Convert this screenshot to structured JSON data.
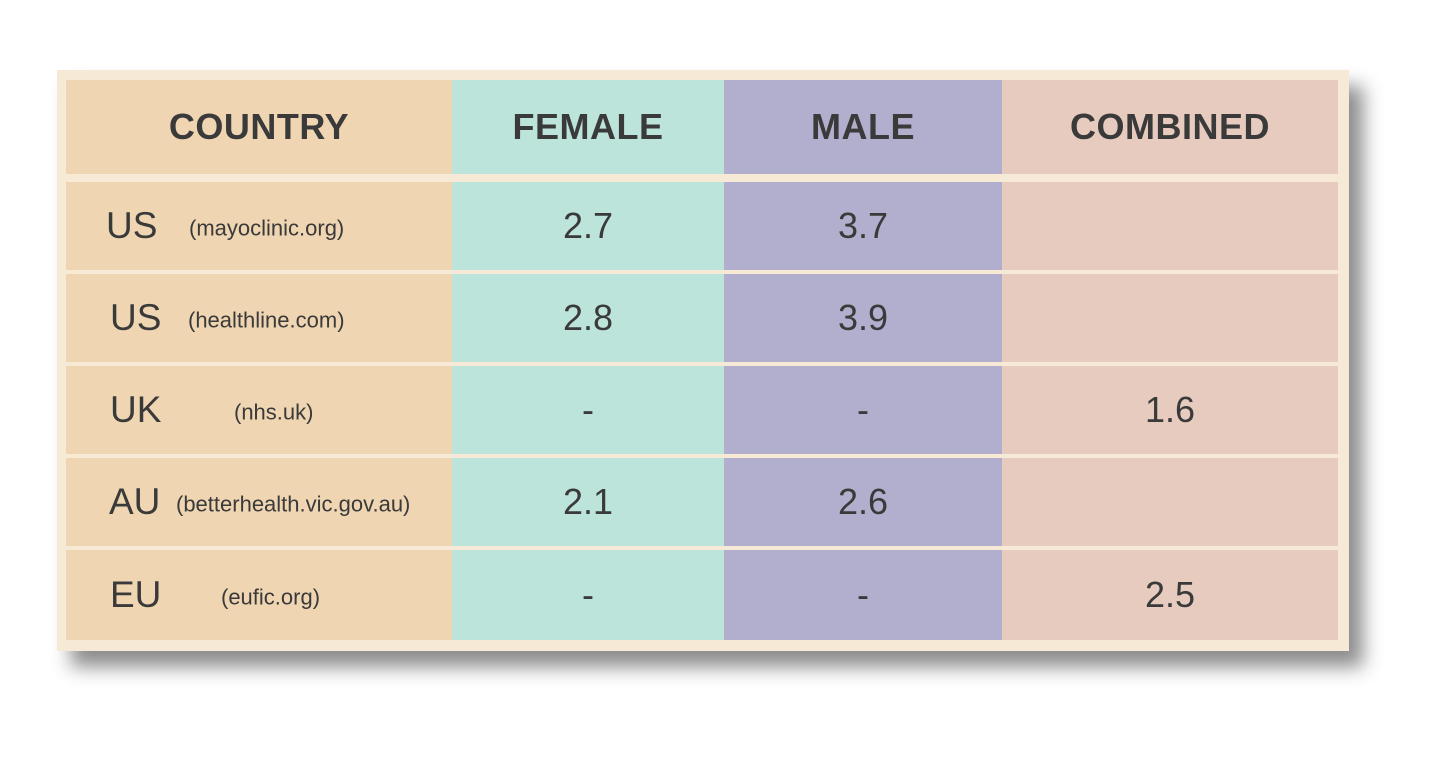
{
  "table": {
    "headers": {
      "country": "COUNTRY",
      "female": "FEMALE",
      "male": "MALE",
      "combined": "COMBINED"
    },
    "rows": [
      {
        "code": "US",
        "source": "(mayoclinic.org)",
        "female": "2.7",
        "male": "3.7",
        "combined": ""
      },
      {
        "code": "US",
        "source": "(healthline.com)",
        "female": "2.8",
        "male": "3.9",
        "combined": ""
      },
      {
        "code": "UK",
        "source": "(nhs.uk)",
        "female": "-",
        "male": "-",
        "combined": "1.6"
      },
      {
        "code": "AU",
        "source": "(betterhealth.vic.gov.au)",
        "female": "2.1",
        "male": "2.6",
        "combined": ""
      },
      {
        "code": "EU",
        "source": "(eufic.org)",
        "female": "-",
        "male": "-",
        "combined": "2.5"
      }
    ]
  },
  "colors": {
    "country_column": "#efd5b2",
    "female_column": "#bde4db",
    "male_column": "#b1afcd",
    "combined_column": "#e6cbbe",
    "frame": "#f6ead6"
  }
}
